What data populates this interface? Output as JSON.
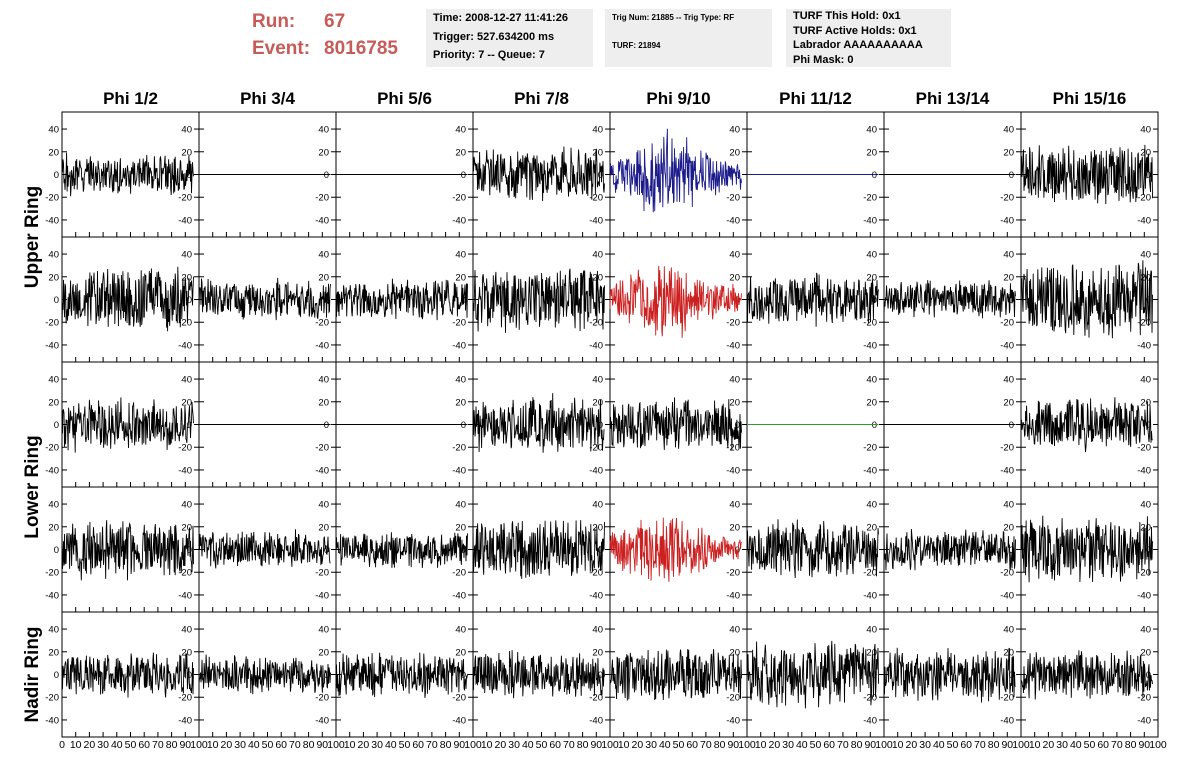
{
  "header": {
    "run_label": "Run:",
    "run_value": "67",
    "event_label": "Event:",
    "event_value": "8016785",
    "info1": [
      "Time: 2008-12-27 11:41:26",
      "Trigger: 527.634200 ms",
      "Priority: 7 -- Queue: 7"
    ],
    "info2": [
      "Trig Num: 21885 -- Trig Type: RF",
      "TURF: 21894"
    ],
    "info3": [
      "TURF This Hold: 0x1",
      "TURF Active Holds: 0x1",
      "Labrador AAAAAAAAAA",
      "Phi Mask: 0"
    ]
  },
  "colors": {
    "header_red": "#c65b57",
    "trace_default": "#000000",
    "trace_blue": "#1c1c8c",
    "trace_red": "#cc2020",
    "trace_green": "#2a9d2a"
  },
  "chart_data": {
    "type": "line",
    "layout": "grid of waveform panels (5 rows x 8 columns)",
    "columns": [
      "Phi 1/2",
      "Phi 3/4",
      "Phi 5/6",
      "Phi 7/8",
      "Phi 9/10",
      "Phi 11/12",
      "Phi 13/14",
      "Phi 15/16"
    ],
    "row_labels": [
      "Upper Ring",
      "Lower Ring",
      "Nadir Ring"
    ],
    "yticks": [
      40,
      20,
      0,
      -20,
      -40
    ],
    "ylim": [
      -55,
      55
    ],
    "xlim": [
      0,
      100
    ],
    "xticks": [
      0,
      10,
      20,
      30,
      40,
      50,
      60,
      70,
      80,
      90,
      100
    ],
    "grid": false,
    "rows": [
      {
        "group": "Upper Ring",
        "traces": [
          {
            "style": "noise",
            "amplitude": 20,
            "color": "#000000"
          },
          {
            "style": "flat",
            "amplitude": 0,
            "color": "#000000"
          },
          {
            "style": "flat",
            "amplitude": 0,
            "color": "#000000"
          },
          {
            "style": "noise",
            "amplitude": 25,
            "color": "#000000"
          },
          {
            "style": "burst",
            "amplitude": 42,
            "color": "#1c1c8c"
          },
          {
            "style": "flat",
            "amplitude": 0,
            "color": "#1c1c8c"
          },
          {
            "style": "flat",
            "amplitude": 0,
            "color": "#000000"
          },
          {
            "style": "noise",
            "amplitude": 28,
            "color": "#000000"
          }
        ]
      },
      {
        "group": "Upper Ring",
        "traces": [
          {
            "style": "noise",
            "amplitude": 32,
            "color": "#000000"
          },
          {
            "style": "noise",
            "amplitude": 20,
            "color": "#000000"
          },
          {
            "style": "noise",
            "amplitude": 20,
            "color": "#000000"
          },
          {
            "style": "noise",
            "amplitude": 32,
            "color": "#000000"
          },
          {
            "style": "burst",
            "amplitude": 38,
            "color": "#cc2020"
          },
          {
            "style": "noise",
            "amplitude": 25,
            "color": "#000000"
          },
          {
            "style": "noise",
            "amplitude": 18,
            "color": "#000000"
          },
          {
            "style": "noise",
            "amplitude": 38,
            "color": "#000000"
          }
        ]
      },
      {
        "group": "Lower Ring",
        "traces": [
          {
            "style": "noise",
            "amplitude": 25,
            "color": "#000000"
          },
          {
            "style": "flat",
            "amplitude": 0,
            "color": "#000000"
          },
          {
            "style": "flat",
            "amplitude": 0,
            "color": "#000000"
          },
          {
            "style": "noise",
            "amplitude": 28,
            "color": "#000000"
          },
          {
            "style": "noise",
            "amplitude": 25,
            "color": "#000000"
          },
          {
            "style": "flat",
            "amplitude": 0,
            "color": "#2a9d2a"
          },
          {
            "style": "flat",
            "amplitude": 0,
            "color": "#000000"
          },
          {
            "style": "noise",
            "amplitude": 26,
            "color": "#000000"
          }
        ]
      },
      {
        "group": "Lower Ring",
        "traces": [
          {
            "style": "noise",
            "amplitude": 28,
            "color": "#000000"
          },
          {
            "style": "noise",
            "amplitude": 18,
            "color": "#000000"
          },
          {
            "style": "noise",
            "amplitude": 18,
            "color": "#000000"
          },
          {
            "style": "noise",
            "amplitude": 30,
            "color": "#000000"
          },
          {
            "style": "burst",
            "amplitude": 38,
            "color": "#cc2020"
          },
          {
            "style": "noise",
            "amplitude": 28,
            "color": "#000000"
          },
          {
            "style": "noise",
            "amplitude": 20,
            "color": "#000000"
          },
          {
            "style": "noise",
            "amplitude": 32,
            "color": "#000000"
          }
        ]
      },
      {
        "group": "Nadir Ring",
        "traces": [
          {
            "style": "noise",
            "amplitude": 22,
            "color": "#000000"
          },
          {
            "style": "noise",
            "amplitude": 18,
            "color": "#000000"
          },
          {
            "style": "noise",
            "amplitude": 22,
            "color": "#000000"
          },
          {
            "style": "noise",
            "amplitude": 22,
            "color": "#000000"
          },
          {
            "style": "noise",
            "amplitude": 26,
            "color": "#000000"
          },
          {
            "style": "noise",
            "amplitude": 32,
            "color": "#000000"
          },
          {
            "style": "noise",
            "amplitude": 26,
            "color": "#000000"
          },
          {
            "style": "noise",
            "amplitude": 24,
            "color": "#000000"
          }
        ]
      }
    ]
  }
}
